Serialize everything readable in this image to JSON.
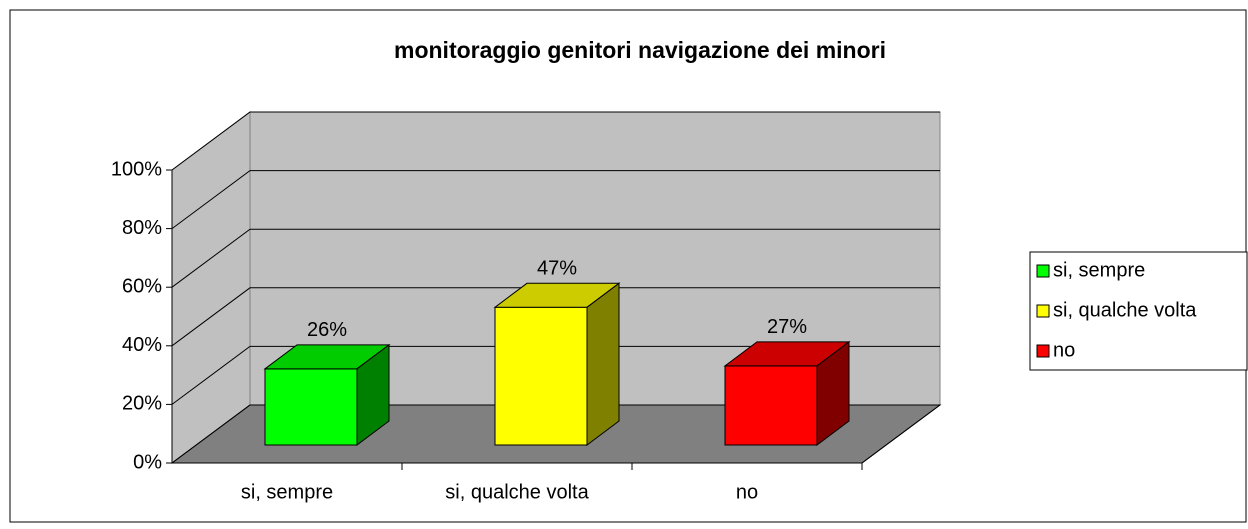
{
  "chart_data": {
    "type": "bar3d",
    "title": "monitoraggio genitori navigazione dei minori",
    "categories": [
      "si, sempre",
      "si, qualche volta",
      "no"
    ],
    "values": [
      26,
      47,
      27
    ],
    "value_labels": [
      "26%",
      "47%",
      "27%"
    ],
    "colors": [
      "#00ff00",
      "#ffff00",
      "#ff0000"
    ],
    "ylim": [
      0,
      100
    ],
    "yticks": [
      {
        "value": 0,
        "label": "0%"
      },
      {
        "value": 20,
        "label": "20%"
      },
      {
        "value": 40,
        "label": "40%"
      },
      {
        "value": 60,
        "label": "60%"
      },
      {
        "value": 80,
        "label": "80%"
      },
      {
        "value": 100,
        "label": "100%"
      }
    ],
    "grid": true,
    "legend": "right"
  }
}
